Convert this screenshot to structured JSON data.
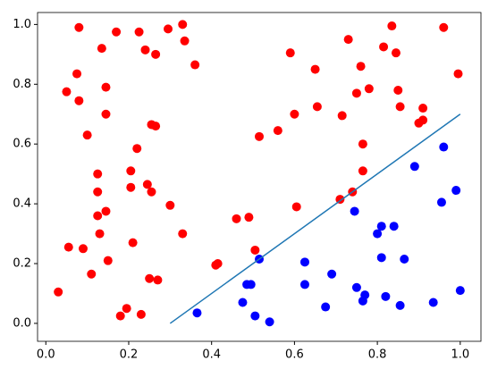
{
  "chart_data": {
    "type": "scatter",
    "xlim": [
      -0.02,
      1.05
    ],
    "ylim": [
      -0.06,
      1.04
    ],
    "xticks": [
      {
        "value": 0,
        "label": "0.0"
      },
      0.2,
      0.4,
      0.6,
      0.8,
      {
        "value": 1,
        "label": "1.0"
      }
    ],
    "yticks": [
      {
        "value": 0,
        "label": "0.0"
      },
      0.2,
      0.4,
      0.6,
      0.8,
      {
        "value": 1,
        "label": "1.0"
      }
    ],
    "series": [
      {
        "type": "scatter",
        "color": "red",
        "x": [
          0.03,
          0.05,
          0.055,
          0.075,
          0.08,
          0.08,
          0.09,
          0.1,
          0.11,
          0.125,
          0.125,
          0.125,
          0.13,
          0.135,
          0.145,
          0.145,
          0.145,
          0.15,
          0.17,
          0.18,
          0.195,
          0.205,
          0.205,
          0.21,
          0.225,
          0.22,
          0.23,
          0.24,
          0.245,
          0.25,
          0.255,
          0.255,
          0.265,
          0.265,
          0.27,
          0.295,
          0.3,
          0.33,
          0.335,
          0.33,
          0.36,
          0.41,
          0.415,
          0.46,
          0.49,
          0.505,
          0.515,
          0.56,
          0.59,
          0.6,
          0.605,
          0.65,
          0.655,
          0.71,
          0.715,
          0.73,
          0.74,
          0.75,
          0.76,
          0.765,
          0.765,
          0.78,
          0.815,
          0.835,
          0.845,
          0.85,
          0.855,
          0.9,
          0.91,
          0.91,
          0.96,
          0.995
        ],
        "values": [
          0.105,
          0.775,
          0.255,
          0.835,
          0.99,
          0.745,
          0.25,
          0.63,
          0.165,
          0.5,
          0.44,
          0.36,
          0.3,
          0.92,
          0.79,
          0.7,
          0.375,
          0.21,
          0.975,
          0.025,
          0.05,
          0.51,
          0.455,
          0.27,
          0.975,
          0.585,
          0.03,
          0.915,
          0.465,
          0.15,
          0.665,
          0.44,
          0.9,
          0.66,
          0.145,
          0.985,
          0.395,
          1.0,
          0.945,
          0.3,
          0.865,
          0.195,
          0.2,
          0.35,
          0.355,
          0.245,
          0.625,
          0.645,
          0.905,
          0.7,
          0.39,
          0.85,
          0.725,
          0.415,
          0.695,
          0.95,
          0.44,
          0.77,
          0.86,
          0.6,
          0.51,
          0.785,
          0.925,
          0.995,
          0.905,
          0.78,
          0.725,
          0.67,
          0.72,
          0.68,
          0.99,
          0.835
        ]
      },
      {
        "type": "scatter",
        "color": "blue",
        "x": [
          0.365,
          0.475,
          0.485,
          0.495,
          0.505,
          0.515,
          0.54,
          0.625,
          0.625,
          0.675,
          0.69,
          0.745,
          0.75,
          0.765,
          0.77,
          0.8,
          0.81,
          0.81,
          0.82,
          0.84,
          0.855,
          0.865,
          0.89,
          0.935,
          0.955,
          0.96,
          0.99,
          1.0
        ],
        "values": [
          0.035,
          0.07,
          0.13,
          0.13,
          0.025,
          0.215,
          0.005,
          0.205,
          0.13,
          0.055,
          0.165,
          0.375,
          0.12,
          0.075,
          0.095,
          0.3,
          0.325,
          0.22,
          0.09,
          0.325,
          0.06,
          0.215,
          0.525,
          0.07,
          0.405,
          0.59,
          0.445,
          0.11
        ]
      },
      {
        "type": "line",
        "color": "#1f77b4",
        "x": [
          0.3,
          1.0
        ],
        "values": [
          0,
          0.7
        ]
      }
    ]
  }
}
